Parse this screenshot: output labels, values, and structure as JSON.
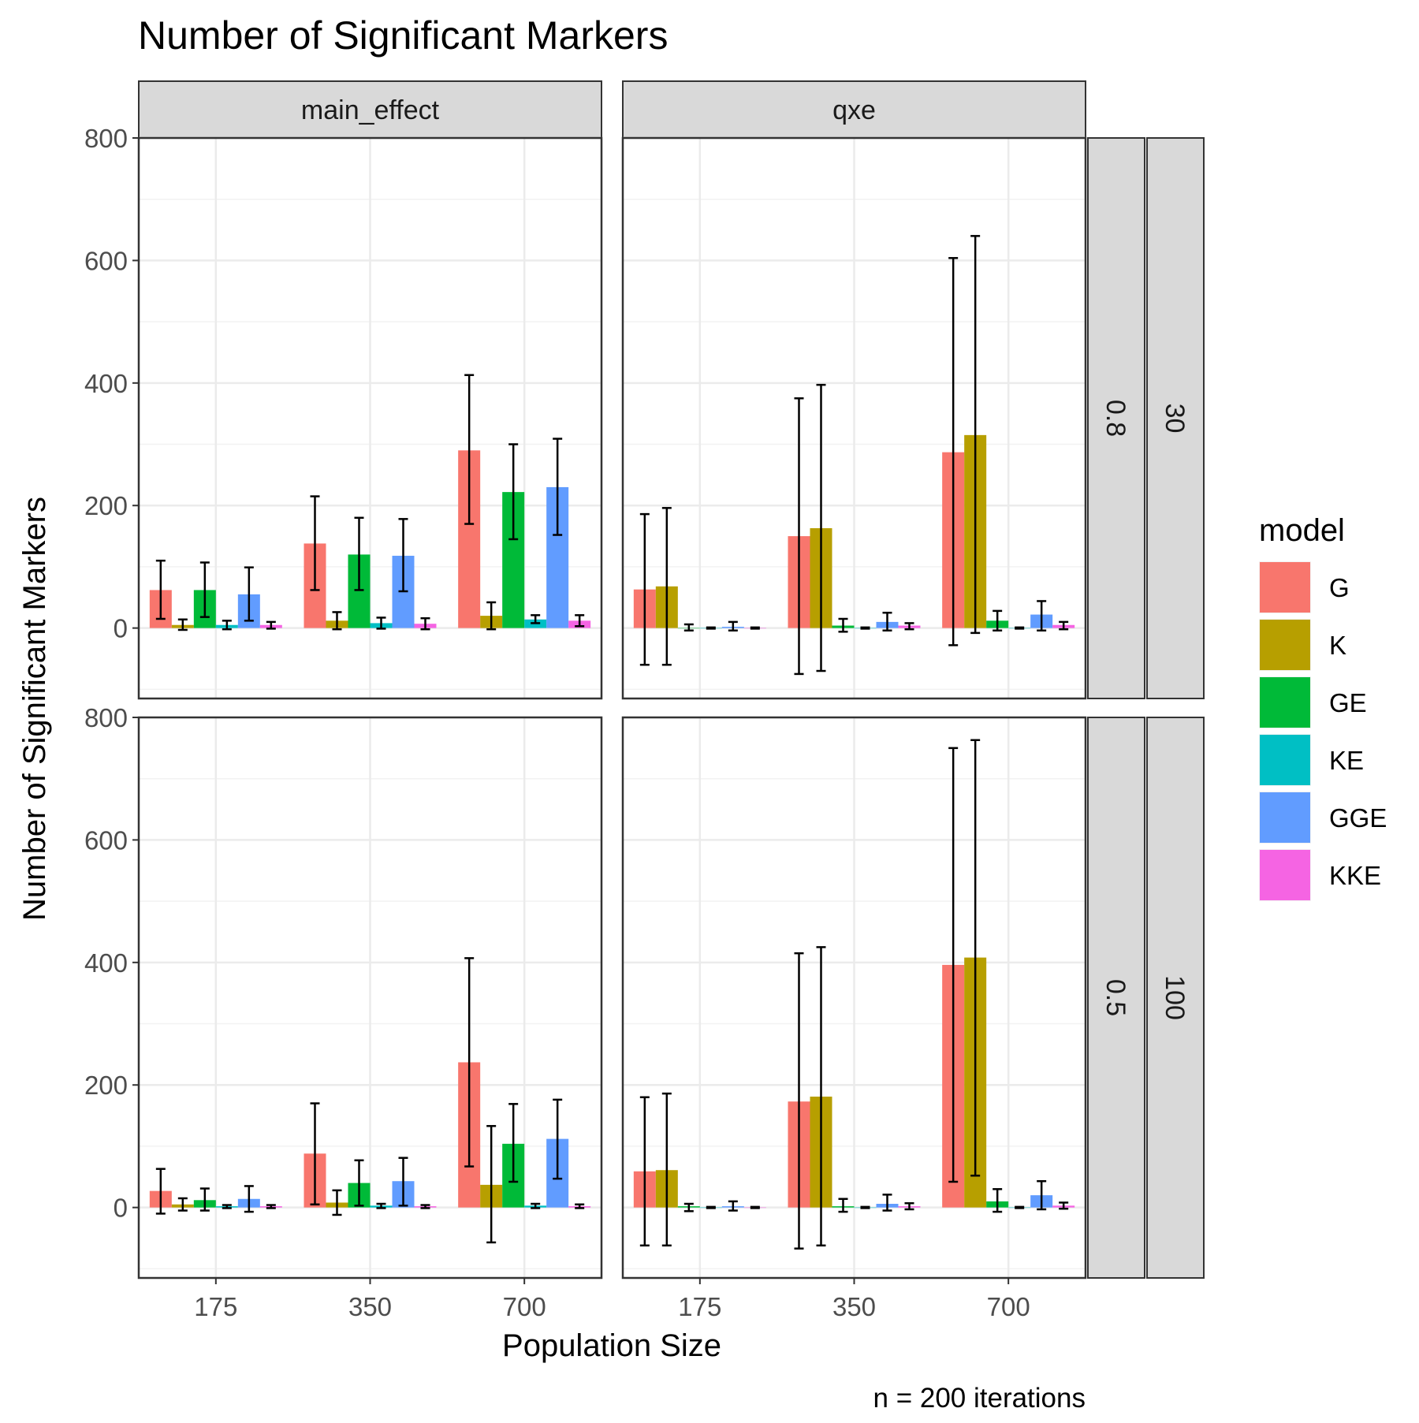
{
  "chart_data": {
    "type": "bar",
    "title": "Number of Significant Markers",
    "xlabel": "Population Size",
    "ylabel": "Number of Significant Markers",
    "caption": "n = 200 iterations",
    "ylim": [
      -115,
      800
    ],
    "yticks": [
      0,
      200,
      400,
      600,
      800
    ],
    "categories": [
      "175",
      "350",
      "700"
    ],
    "legend": {
      "title": "model",
      "position": "right",
      "items": [
        {
          "name": "G",
          "color": "#F8766D"
        },
        {
          "name": "K",
          "color": "#B79F00"
        },
        {
          "name": "GE",
          "color": "#00BA38"
        },
        {
          "name": "KE",
          "color": "#00BFC4"
        },
        {
          "name": "GGE",
          "color": "#619CFF"
        },
        {
          "name": "KKE",
          "color": "#F564E3"
        }
      ]
    },
    "col_facets": [
      "main_effect",
      "qxe"
    ],
    "row_facets": [
      {
        "strip1": "0.8",
        "strip2": "30"
      },
      {
        "strip1": "0.5",
        "strip2": "100"
      }
    ],
    "panels": [
      {
        "row": 0,
        "col": 0,
        "values": [
          [
            62,
            5,
            62,
            5,
            55,
            5
          ],
          [
            138,
            12,
            120,
            8,
            118,
            7
          ],
          [
            290,
            20,
            222,
            14,
            230,
            12
          ]
        ],
        "errors": [
          [
            [
              15,
              110
            ],
            [
              -3,
              14
            ],
            [
              18,
              107
            ],
            [
              -2,
              12
            ],
            [
              12,
              99
            ],
            [
              -1,
              10
            ]
          ],
          [
            [
              62,
              215
            ],
            [
              -2,
              26
            ],
            [
              62,
              180
            ],
            [
              -1,
              17
            ],
            [
              60,
              178
            ],
            [
              -2,
              16
            ]
          ],
          [
            [
              170,
              413
            ],
            [
              -2,
              42
            ],
            [
              145,
              300
            ],
            [
              8,
              21
            ],
            [
              152,
              309
            ],
            [
              3,
              21
            ]
          ]
        ]
      },
      {
        "row": 0,
        "col": 1,
        "values": [
          [
            63,
            68,
            0,
            0,
            2,
            0
          ],
          [
            150,
            163,
            4,
            0,
            10,
            4
          ],
          [
            287,
            315,
            12,
            0,
            22,
            5
          ]
        ],
        "errors": [
          [
            [
              -60,
              186
            ],
            [
              -60,
              196
            ],
            [
              -4,
              6
            ],
            [
              -1,
              1
            ],
            [
              -4,
              10
            ],
            [
              -1,
              1
            ]
          ],
          [
            [
              -75,
              375
            ],
            [
              -70,
              397
            ],
            [
              -6,
              15
            ],
            [
              -1,
              1
            ],
            [
              -4,
              25
            ],
            [
              -2,
              8
            ]
          ],
          [
            [
              -28,
              604
            ],
            [
              -8,
              640
            ],
            [
              -4,
              28
            ],
            [
              -1,
              1
            ],
            [
              -4,
              44
            ],
            [
              -2,
              10
            ]
          ]
        ]
      },
      {
        "row": 1,
        "col": 0,
        "values": [
          [
            27,
            5,
            12,
            2,
            14,
            2
          ],
          [
            88,
            8,
            40,
            3,
            43,
            2
          ],
          [
            237,
            37,
            104,
            3,
            112,
            2
          ]
        ],
        "errors": [
          [
            [
              -10,
              63
            ],
            [
              -5,
              15
            ],
            [
              -5,
              31
            ],
            [
              -1,
              4
            ],
            [
              -7,
              35
            ],
            [
              -1,
              4
            ]
          ],
          [
            [
              5,
              170
            ],
            [
              -12,
              28
            ],
            [
              3,
              77
            ],
            [
              -1,
              6
            ],
            [
              3,
              81
            ],
            [
              -1,
              4
            ]
          ],
          [
            [
              67,
              407
            ],
            [
              -57,
              133
            ],
            [
              42,
              169
            ],
            [
              -1,
              6
            ],
            [
              47,
              176
            ],
            [
              -1,
              5
            ]
          ]
        ]
      },
      {
        "row": 1,
        "col": 1,
        "values": [
          [
            59,
            61,
            2,
            0,
            2,
            0
          ],
          [
            173,
            181,
            2,
            0,
            6,
            2
          ],
          [
            396,
            408,
            10,
            0,
            20,
            3
          ]
        ],
        "errors": [
          [
            [
              -62,
              180
            ],
            [
              -62,
              186
            ],
            [
              -6,
              6
            ],
            [
              -1,
              1
            ],
            [
              -5,
              10
            ],
            [
              -1,
              1
            ]
          ],
          [
            [
              -67,
              415
            ],
            [
              -62,
              425
            ],
            [
              -7,
              14
            ],
            [
              -1,
              1
            ],
            [
              -5,
              21
            ],
            [
              -3,
              7
            ]
          ],
          [
            [
              42,
              750
            ],
            [
              52,
              763
            ],
            [
              -7,
              30
            ],
            [
              -1,
              1
            ],
            [
              -3,
              43
            ],
            [
              -2,
              8
            ]
          ]
        ]
      }
    ]
  }
}
